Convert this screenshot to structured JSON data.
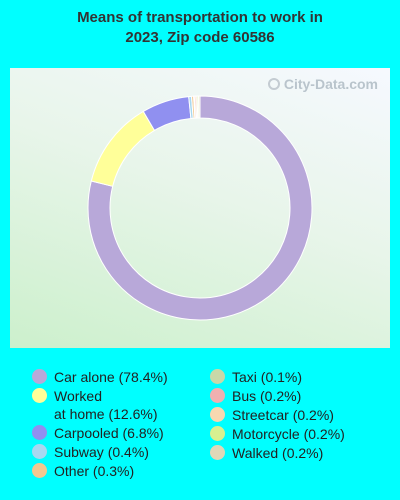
{
  "title": "Means of transportation to work in\n2023, Zip code 60586",
  "watermark": "City-Data.com",
  "chart_data": {
    "type": "pie",
    "style": "donut",
    "categories": [
      "Car alone",
      "Worked at home",
      "Carpooled",
      "Subway",
      "Other",
      "Taxi",
      "Bus",
      "Streetcar",
      "Motorcycle",
      "Walked"
    ],
    "values": [
      78.4,
      12.6,
      6.8,
      0.4,
      0.3,
      0.1,
      0.2,
      0.2,
      0.2,
      0.2
    ],
    "colors": [
      "#b8a8d9",
      "#ffff99",
      "#9090f0",
      "#a8d8f0",
      "#f2c890",
      "#c8d8a8",
      "#f0b0b0",
      "#f8d8b0",
      "#d8f090",
      "#e0d8b8"
    ],
    "slice_order": [
      0,
      1,
      2,
      3,
      4,
      5,
      6,
      7,
      8,
      9
    ]
  },
  "legend": {
    "left": [
      {
        "label": "Car alone (78.4%)",
        "color": "#b8a8d9"
      },
      {
        "label": "Worked\nat home (12.6%)",
        "color": "#ffff99"
      },
      {
        "label": "Carpooled (6.8%)",
        "color": "#9090f0"
      },
      {
        "label": "Subway (0.4%)",
        "color": "#a8d8f0"
      },
      {
        "label": "Other (0.3%)",
        "color": "#f2c890"
      }
    ],
    "right": [
      {
        "label": "Taxi (0.1%)",
        "color": "#c8d8a8"
      },
      {
        "label": "Bus (0.2%)",
        "color": "#f0b0b0"
      },
      {
        "label": "Streetcar (0.2%)",
        "color": "#f8d8b0"
      },
      {
        "label": "Motorcycle (0.2%)",
        "color": "#d8f090"
      },
      {
        "label": "Walked (0.2%)",
        "color": "#e0d8b8"
      }
    ]
  }
}
